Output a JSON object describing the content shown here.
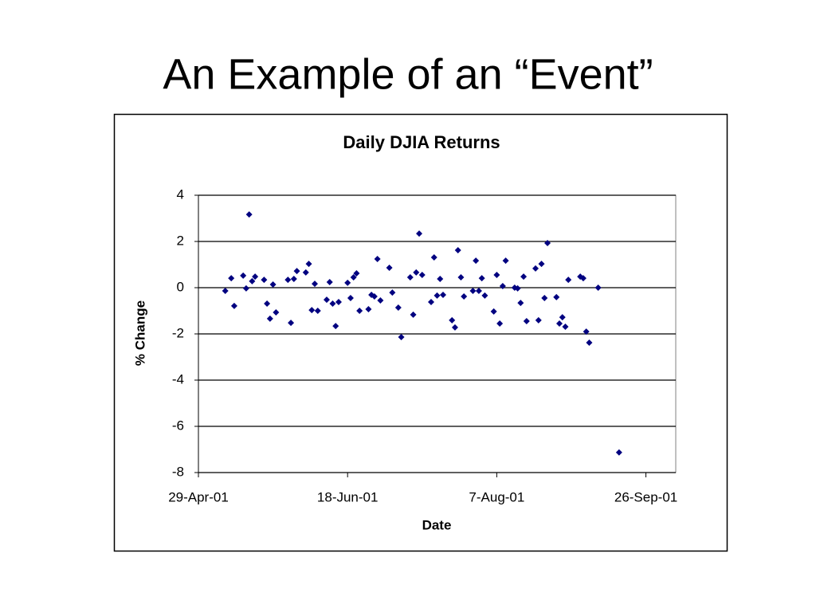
{
  "slide_title": "An Example of an “Event”",
  "chart_data": {
    "type": "scatter",
    "title": "Daily DJIA Returns",
    "x_label": "Date",
    "y_label": "% Change",
    "color": "#000080",
    "grid": true,
    "xlim": [
      "2001-04-29",
      "2001-10-06"
    ],
    "xticks": [
      {
        "value": "2001-04-29",
        "label": "29-Apr-01"
      },
      {
        "value": "2001-06-18",
        "label": "18-Jun-01"
      },
      {
        "value": "2001-08-07",
        "label": "7-Aug-01"
      },
      {
        "value": "2001-09-26",
        "label": "26-Sep-01"
      }
    ],
    "ylim": [
      -8,
      4
    ],
    "yticks": [
      -8,
      -6,
      -4,
      -2,
      0,
      2,
      4
    ],
    "x": [
      "2001-05-08",
      "2001-05-10",
      "2001-05-11",
      "2001-05-14",
      "2001-05-15",
      "2001-05-16",
      "2001-05-17",
      "2001-05-18",
      "2001-05-21",
      "2001-05-22",
      "2001-05-23",
      "2001-05-24",
      "2001-05-25",
      "2001-05-29",
      "2001-05-30",
      "2001-05-31",
      "2001-06-01",
      "2001-06-04",
      "2001-06-05",
      "2001-06-06",
      "2001-06-07",
      "2001-06-08",
      "2001-06-11",
      "2001-06-12",
      "2001-06-13",
      "2001-06-14",
      "2001-06-15",
      "2001-06-18",
      "2001-06-19",
      "2001-06-20",
      "2001-06-21",
      "2001-06-22",
      "2001-06-25",
      "2001-06-26",
      "2001-06-27",
      "2001-06-28",
      "2001-06-29",
      "2001-07-02",
      "2001-07-03",
      "2001-07-05",
      "2001-07-06",
      "2001-07-09",
      "2001-07-10",
      "2001-07-11",
      "2001-07-12",
      "2001-07-13",
      "2001-07-16",
      "2001-07-17",
      "2001-07-18",
      "2001-07-19",
      "2001-07-20",
      "2001-07-23",
      "2001-07-24",
      "2001-07-25",
      "2001-07-26",
      "2001-07-27",
      "2001-07-30",
      "2001-07-31",
      "2001-08-01",
      "2001-08-02",
      "2001-08-03",
      "2001-08-06",
      "2001-08-07",
      "2001-08-08",
      "2001-08-09",
      "2001-08-10",
      "2001-08-13",
      "2001-08-14",
      "2001-08-15",
      "2001-08-16",
      "2001-08-17",
      "2001-08-20",
      "2001-08-21",
      "2001-08-22",
      "2001-08-23",
      "2001-08-24",
      "2001-08-27",
      "2001-08-28",
      "2001-08-29",
      "2001-08-30",
      "2001-08-31",
      "2001-09-04",
      "2001-09-05",
      "2001-09-06",
      "2001-09-07",
      "2001-09-10",
      "2001-09-17"
    ],
    "values": [
      -0.14,
      0.41,
      -0.79,
      0.52,
      -0.03,
      3.17,
      0.28,
      0.48,
      0.34,
      -0.69,
      -1.34,
      0.14,
      -1.07,
      0.34,
      -1.52,
      0.38,
      0.72,
      0.66,
      1.03,
      -0.97,
      0.17,
      -1.0,
      -0.52,
      0.24,
      -0.69,
      -1.66,
      -0.62,
      0.21,
      -0.45,
      0.45,
      0.62,
      -1.0,
      -0.93,
      -0.31,
      -0.38,
      1.24,
      -0.55,
      0.86,
      -0.21,
      -0.86,
      -2.14,
      0.45,
      -1.17,
      0.66,
      2.34,
      0.55,
      -0.62,
      1.31,
      -0.34,
      0.38,
      -0.31,
      -1.41,
      -1.72,
      1.62,
      0.45,
      -0.38,
      -0.14,
      1.17,
      -0.14,
      0.41,
      -0.34,
      -1.03,
      0.55,
      -1.55,
      0.07,
      1.17,
      0.0,
      -0.03,
      -0.66,
      0.48,
      -1.45,
      0.83,
      -1.41,
      1.03,
      -0.45,
      1.93,
      -0.41,
      -1.55,
      -1.28,
      -1.69,
      0.34,
      0.48,
      0.41,
      -1.9,
      -2.38,
      0.0,
      -7.13
    ]
  }
}
